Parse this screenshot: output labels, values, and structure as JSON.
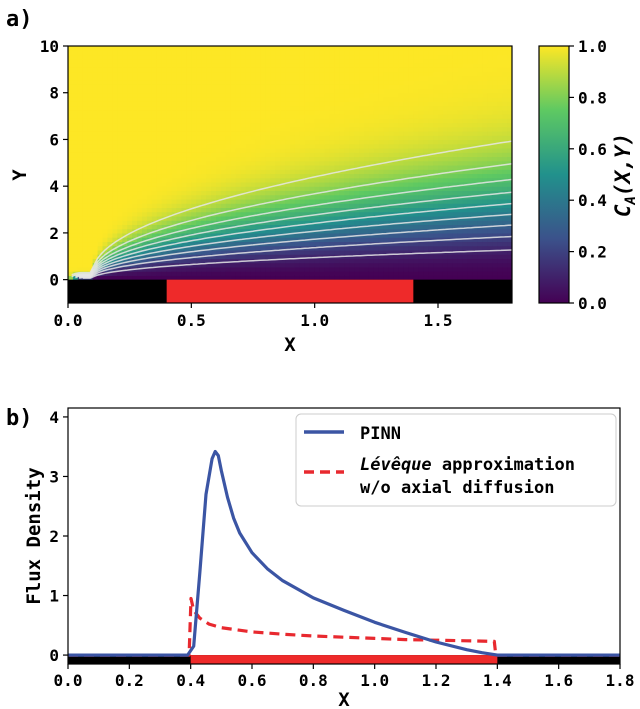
{
  "panel_a": {
    "label": "a)",
    "colorbar": {
      "label": "C_A(X,Y)",
      "ticks": [
        "0.0",
        "0.2",
        "0.4",
        "0.6",
        "0.8",
        "1.0"
      ],
      "colormap": [
        "#440154",
        "#3b528b",
        "#21918c",
        "#5ec962",
        "#fde725"
      ]
    }
  },
  "panel_b": {
    "label": "b)"
  },
  "colors": {
    "electrode": "#ee2a2a",
    "insulator": "#000000",
    "pinn_line": "#3b55a4",
    "leveque_line": "#e8292f",
    "contour": "#e6e6e6"
  },
  "chart_data": [
    {
      "type": "heatmap",
      "xlabel": "X",
      "ylabel": "Y",
      "xlim": [
        0.0,
        1.8
      ],
      "ylim": [
        -1,
        10
      ],
      "xticks": [
        "0.0",
        "0.5",
        "1.0",
        "1.5"
      ],
      "yticks": [
        "0",
        "2",
        "4",
        "6",
        "8",
        "10"
      ],
      "value_label": "C_A(X,Y)",
      "value_range": [
        0.0,
        1.0
      ],
      "contour_levels": [
        0.1,
        0.2,
        0.3,
        0.4,
        0.5,
        0.6,
        0.7,
        0.8,
        0.9
      ],
      "electrode_x": [
        0.4,
        1.4
      ],
      "grid": false
    },
    {
      "type": "line",
      "xlabel": "X",
      "ylabel": "Flux Density",
      "xlim": [
        0.0,
        1.8
      ],
      "ylim": [
        -0.15,
        4.15
      ],
      "xticks": [
        "0.0",
        "0.2",
        "0.4",
        "0.6",
        "0.8",
        "1.0",
        "1.2",
        "1.4",
        "1.6",
        "1.8"
      ],
      "yticks": [
        "0",
        "1",
        "2",
        "3",
        "4"
      ],
      "grid": false,
      "legend_position": "top-right",
      "electrode_x": [
        0.4,
        1.4
      ],
      "series": [
        {
          "name": "PINN",
          "style": "solid",
          "x": [
            0.0,
            0.39,
            0.41,
            0.43,
            0.45,
            0.47,
            0.48,
            0.49,
            0.5,
            0.52,
            0.54,
            0.56,
            0.6,
            0.65,
            0.7,
            0.8,
            0.9,
            1.0,
            1.1,
            1.2,
            1.3,
            1.35,
            1.4,
            1.5,
            1.8
          ],
          "y": [
            0.0,
            0.0,
            0.15,
            1.4,
            2.7,
            3.3,
            3.42,
            3.35,
            3.1,
            2.65,
            2.3,
            2.05,
            1.72,
            1.45,
            1.25,
            0.96,
            0.75,
            0.55,
            0.38,
            0.22,
            0.09,
            0.04,
            0.0,
            0.0,
            0.0
          ]
        },
        {
          "name_main": "Lévêque",
          "name_rest": " approximation",
          "name_line2": "w/o axial diffusion",
          "style": "dashed",
          "x": [
            0.0,
            0.395,
            0.401,
            0.41,
            0.43,
            0.46,
            0.5,
            0.6,
            0.7,
            0.8,
            0.9,
            1.0,
            1.1,
            1.2,
            1.3,
            1.39,
            1.395,
            1.4,
            1.8
          ],
          "y": [
            0.0,
            0.0,
            0.95,
            0.75,
            0.62,
            0.52,
            0.46,
            0.39,
            0.35,
            0.32,
            0.3,
            0.28,
            0.26,
            0.25,
            0.24,
            0.23,
            0.0,
            0.0,
            0.0
          ]
        }
      ]
    }
  ]
}
